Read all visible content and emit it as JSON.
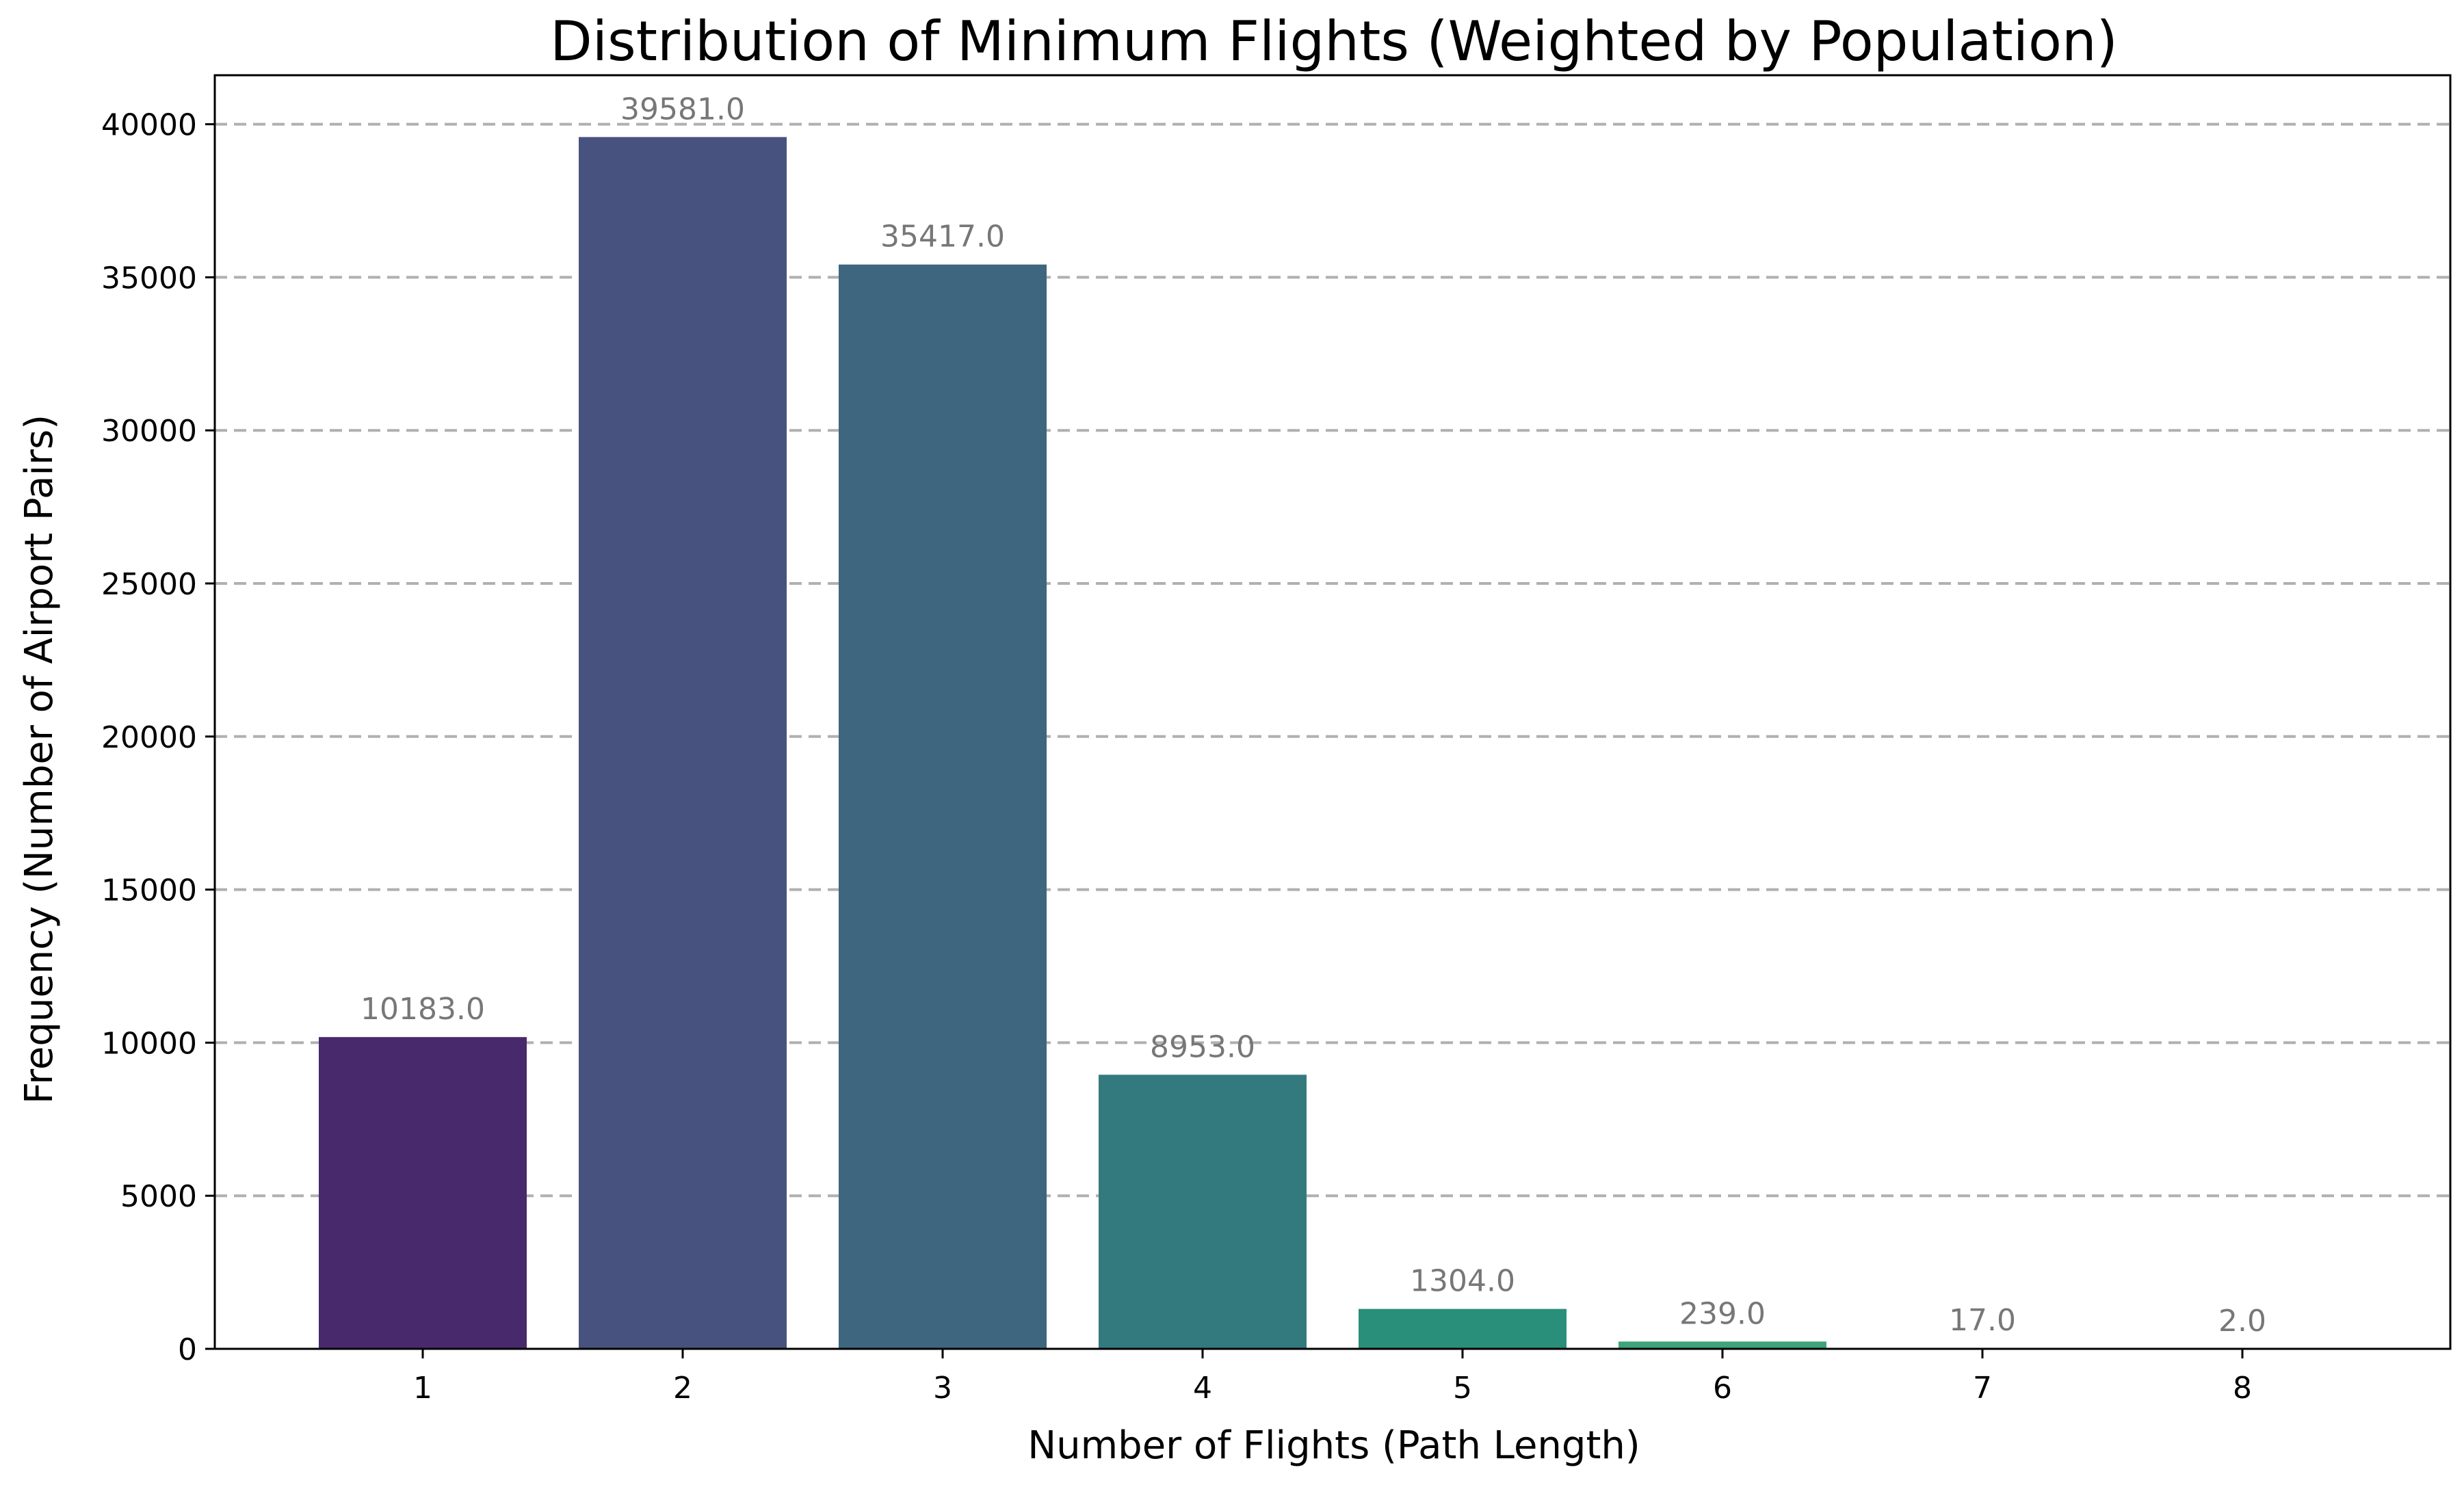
{
  "chart_data": {
    "type": "bar",
    "title": "Distribution of Minimum Flights (Weighted by Population)",
    "xlabel": "Number of Flights (Path Length)",
    "ylabel": "Frequency (Number of Airport Pairs)",
    "categories": [
      "1",
      "2",
      "3",
      "4",
      "5",
      "6",
      "7",
      "8"
    ],
    "values": [
      10183.0,
      39581.0,
      35417.0,
      8953.0,
      1304.0,
      239.0,
      17.0,
      2.0
    ],
    "data_labels": [
      "10183.0",
      "39581.0",
      "35417.0",
      "8953.0",
      "1304.0",
      "239.0",
      "17.0",
      "2.0"
    ],
    "colors": [
      "#482a6c",
      "#48527e",
      "#3e667f",
      "#337a7f",
      "#2a8f7a",
      "#3ea57a",
      "#56b774",
      "#77c86a"
    ],
    "ylim": [
      0,
      41600
    ],
    "yticks": [
      0,
      5000,
      10000,
      15000,
      20000,
      25000,
      30000,
      35000,
      40000
    ],
    "ytick_labels": [
      "0",
      "5000",
      "10000",
      "15000",
      "20000",
      "25000",
      "30000",
      "35000",
      "40000"
    ],
    "grid": "horizontal dashed",
    "legend": "none"
  }
}
